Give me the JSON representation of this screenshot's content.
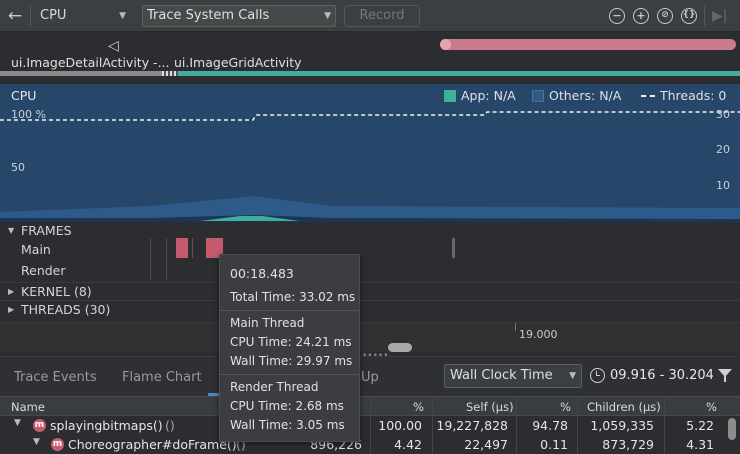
{
  "toolbar": {
    "back_icon": "back-arrow-icon",
    "cpu_selector": "CPU",
    "trace_config": "Trace System Calls",
    "record_label": "Record",
    "icons": [
      "zoom-out-icon",
      "zoom-in-icon",
      "reset-zoom-icon",
      "attach-icon",
      "go-live-icon"
    ]
  },
  "activities": {
    "first": "ui.ImageDetailActivity -...",
    "second": "ui.ImageGridActivity"
  },
  "cpu_chart": {
    "title": "CPU",
    "legend": {
      "app": "App: N/A",
      "others": "Others: N/A",
      "threads": "Threads: 0"
    },
    "left_ticks": [
      "100 %",
      "50"
    ],
    "right_ticks": [
      "30",
      "20",
      "10"
    ],
    "colors": {
      "app": "#3fae9c",
      "others": "#2e5a8a",
      "background": "#26466a"
    }
  },
  "frames": {
    "header": "FRAMES",
    "main": "Main",
    "render": "Render"
  },
  "kernel_label": "KERNEL (8)",
  "threads_label": "THREADS (30)",
  "time_axis": {
    "tick": "19.000"
  },
  "tooltip": {
    "time": "00:18.483",
    "total": "Total Time: 33.02 ms",
    "main_header": "Main Thread",
    "main_cpu": "CPU Time: 24.21 ms",
    "main_wall": "Wall Time: 29.97 ms",
    "render_header": "Render Thread",
    "render_cpu": "CPU Time: 2.68 ms",
    "render_wall": "Wall Time: 3.05 ms"
  },
  "tabs": {
    "trace_events": "Trace Events",
    "flame_chart": "Flame Chart",
    "bottom_up_fragment": "Up"
  },
  "clock_select": "Wall Clock Time",
  "range": "09.916 - 30.204",
  "table": {
    "headers": {
      "name": "Name",
      "pct1": "%",
      "self": "Self (µs)",
      "pct2": "%",
      "children": "Children (µs)",
      "pct3": "%"
    },
    "rows": [
      {
        "name": "splayingbitmaps()",
        "suffix": "()",
        "total": "",
        "pct1": "100.00",
        "self": "19,227,828",
        "pct2": "94.78",
        "children": "1,059,335",
        "pct3": "5.22"
      },
      {
        "name": "Choreographer#doFrame()",
        "suffix": "()",
        "total": "896,226",
        "pct1": "4.42",
        "self": "22,497",
        "pct2": "0.11",
        "children": "873,729",
        "pct3": "4.31"
      }
    ]
  }
}
